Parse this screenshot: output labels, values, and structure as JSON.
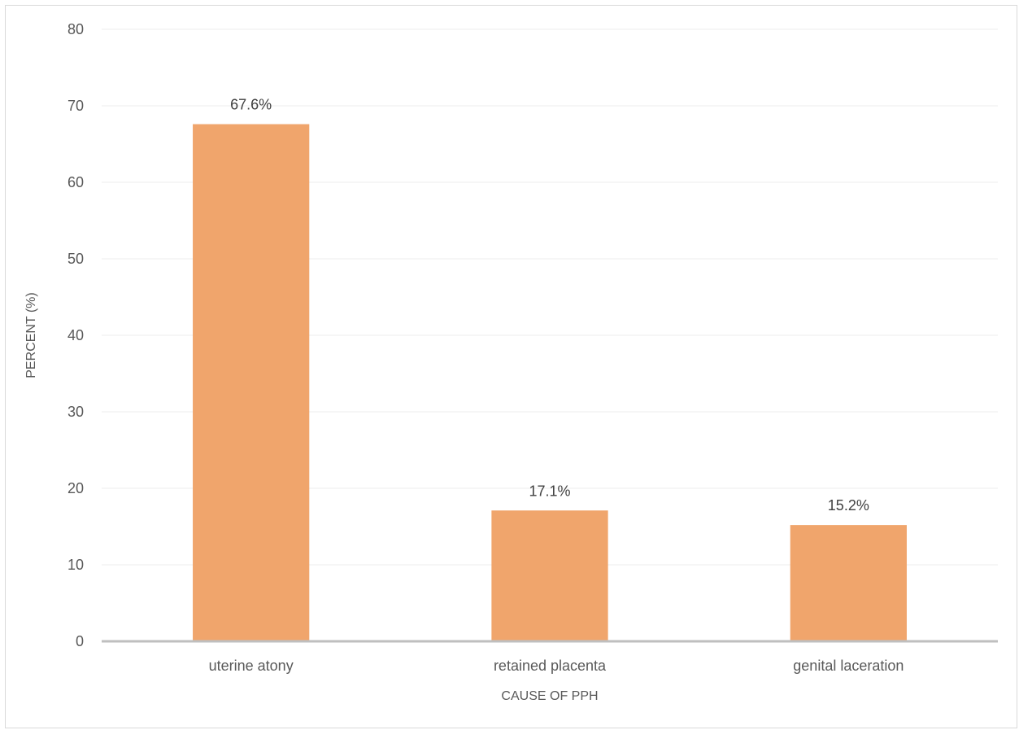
{
  "chart_data": {
    "type": "bar",
    "categories": [
      "uterine atony",
      "retained placenta",
      "genital laceration"
    ],
    "values": [
      67.6,
      17.1,
      15.2
    ],
    "data_labels": [
      "67.6%",
      "17.1%",
      "15.2%"
    ],
    "title": "",
    "xlabel": "CAUSE OF PPH",
    "ylabel": "PERCENT (%)",
    "ylim": [
      0,
      80
    ],
    "yticks": [
      0,
      10,
      20,
      30,
      40,
      50,
      60,
      70,
      80
    ],
    "grid": true,
    "legend": "none",
    "bar_color": "#f0a56c"
  }
}
